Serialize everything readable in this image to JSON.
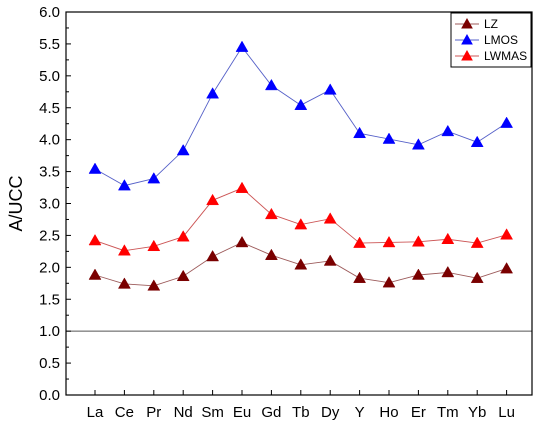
{
  "chart_data": {
    "type": "line",
    "title": "",
    "xlabel": "",
    "ylabel": "A/UCC",
    "categories": [
      "La",
      "Ce",
      "Pr",
      "Nd",
      "Sm",
      "Eu",
      "Gd",
      "Tb",
      "Dy",
      "Y",
      "Ho",
      "Er",
      "Tm",
      "Yb",
      "Lu"
    ],
    "ylim": [
      0.0,
      6.0
    ],
    "yticks": [
      "0.0",
      "0.5",
      "1.0",
      "1.5",
      "2.0",
      "2.5",
      "3.0",
      "3.5",
      "4.0",
      "4.5",
      "5.0",
      "5.5",
      "6.0"
    ],
    "reference_line": 1.0,
    "grid": false,
    "legend_position": "top-right",
    "series": [
      {
        "name": "LZ",
        "color": "#7a0000",
        "line_color": "#9c5a5a",
        "marker": "triangle",
        "values": [
          1.88,
          1.74,
          1.71,
          1.86,
          2.17,
          2.39,
          2.19,
          2.04,
          2.1,
          1.83,
          1.76,
          1.88,
          1.92,
          1.83,
          1.98
        ]
      },
      {
        "name": "LMOS",
        "color": "#0000ff",
        "line_color": "#5560c8",
        "marker": "triangle",
        "values": [
          3.54,
          3.28,
          3.39,
          3.83,
          4.72,
          5.45,
          4.85,
          4.54,
          4.78,
          4.1,
          4.01,
          3.92,
          4.13,
          3.96,
          4.26
        ]
      },
      {
        "name": "LWMAS",
        "color": "#ff0000",
        "line_color": "#cc5555",
        "marker": "triangle",
        "values": [
          2.42,
          2.26,
          2.33,
          2.48,
          3.05,
          3.24,
          2.83,
          2.67,
          2.76,
          2.38,
          2.39,
          2.4,
          2.44,
          2.38,
          2.51
        ]
      }
    ]
  }
}
